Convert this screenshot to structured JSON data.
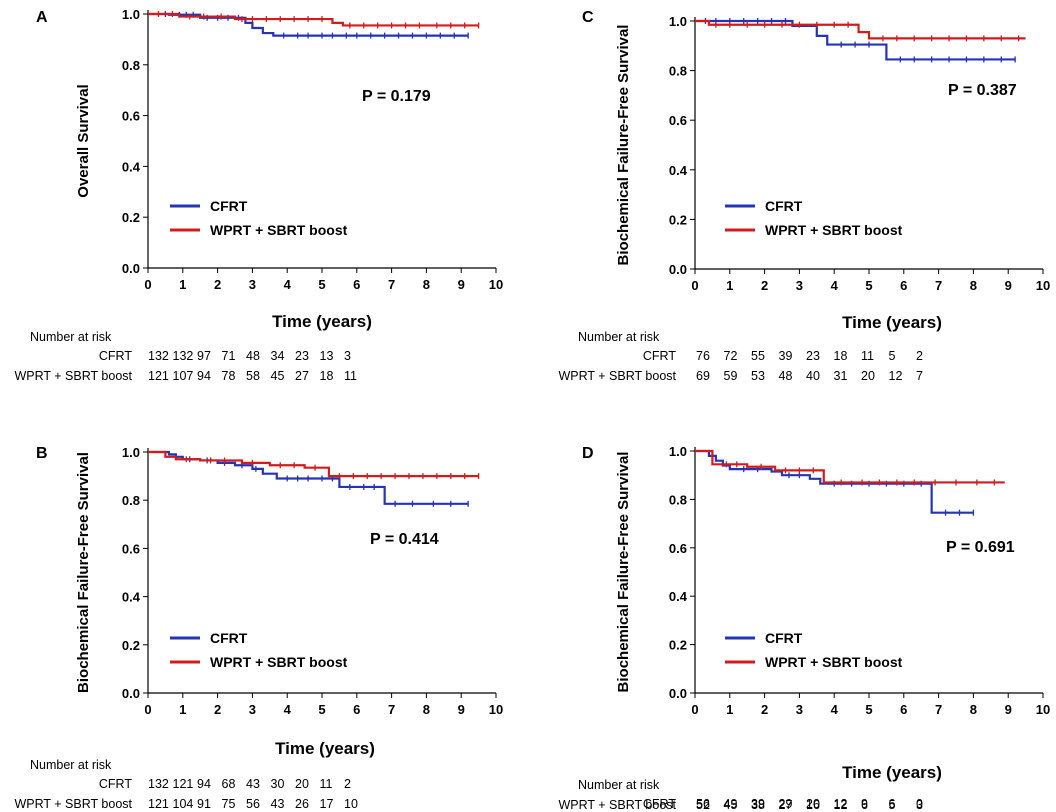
{
  "figure": {
    "number_at_risk_label": "Number at risk",
    "colors": {
      "series_1": "#2434b4",
      "series_2": "#d21c1c"
    }
  },
  "chart_data": [
    {
      "panel": "A",
      "type": "line",
      "style": "km-step",
      "xlabel": "Time (years)",
      "ylabel": "Overall Survival",
      "xlim": [
        0,
        10
      ],
      "ylim": [
        0,
        1.0
      ],
      "xticks": [
        "0",
        "1",
        "2",
        "3",
        "4",
        "5",
        "6",
        "7",
        "8",
        "9",
        "10"
      ],
      "yticks": [
        "0.0",
        "0.2",
        "0.4",
        "0.6",
        "0.8",
        "1.0"
      ],
      "p_value": "P = 0.179",
      "series": [
        {
          "name": "CFRT",
          "x": [
            0,
            0.6,
            1.5,
            2.8,
            3.0,
            3.3,
            3.6,
            9.2
          ],
          "y": [
            1.0,
            0.997,
            0.985,
            0.965,
            0.945,
            0.925,
            0.915,
            0.915
          ],
          "censor_x": [
            0.5,
            0.9,
            1.1,
            1.3,
            1.7,
            2.0,
            2.3,
            2.6,
            3.9,
            4.3,
            4.6,
            5.0,
            5.3,
            5.7,
            6.0,
            6.4,
            6.8,
            7.2,
            7.6,
            8.0,
            8.4,
            8.8,
            9.2
          ]
        },
        {
          "name": "WPRT + SBRT boost",
          "x": [
            0,
            0.9,
            2.5,
            5.3,
            5.6,
            9.5
          ],
          "y": [
            1.0,
            0.99,
            0.98,
            0.965,
            0.955,
            0.955
          ],
          "censor_x": [
            0.3,
            0.7,
            1.2,
            1.6,
            2.1,
            2.7,
            3.0,
            3.4,
            3.8,
            4.2,
            4.6,
            5.0,
            5.8,
            6.2,
            6.6,
            7.0,
            7.4,
            7.8,
            8.3,
            8.7,
            9.1,
            9.5
          ]
        }
      ],
      "risk_table": [
        {
          "name": "CFRT",
          "counts": [
            "132",
            "132",
            "97",
            "71",
            "48",
            "34",
            "23",
            "13",
            "3"
          ]
        },
        {
          "name": "WPRT + SBRT boost",
          "counts": [
            "121",
            "107",
            "94",
            "78",
            "58",
            "45",
            "27",
            "18",
            "11"
          ]
        }
      ]
    },
    {
      "panel": "C",
      "type": "line",
      "style": "km-step",
      "xlabel": "Time (years)",
      "ylabel": "Biochemical Failure-Free Survival",
      "xlim": [
        0,
        10
      ],
      "ylim": [
        0,
        1.0
      ],
      "xticks": [
        "0",
        "1",
        "2",
        "3",
        "4",
        "5",
        "6",
        "7",
        "8",
        "9",
        "10"
      ],
      "yticks": [
        "0.0",
        "0.2",
        "0.4",
        "0.6",
        "0.8",
        "1.0"
      ],
      "p_value": "P = 0.387",
      "series": [
        {
          "name": "CFRT",
          "x": [
            0,
            2.8,
            3.5,
            3.8,
            5.5,
            9.2
          ],
          "y": [
            1.0,
            0.98,
            0.94,
            0.905,
            0.845,
            0.845
          ],
          "censor_x": [
            0.3,
            0.6,
            1.0,
            1.4,
            1.8,
            2.2,
            2.6,
            4.2,
            4.6,
            5.0,
            5.9,
            6.3,
            6.8,
            7.3,
            7.8,
            8.3,
            8.8,
            9.2
          ]
        },
        {
          "name": "WPRT + SBRT boost",
          "x": [
            0,
            0.4,
            4.7,
            5.0,
            9.5
          ],
          "y": [
            1.0,
            0.985,
            0.955,
            0.93,
            0.93
          ],
          "censor_x": [
            0.6,
            1.0,
            1.5,
            2.0,
            2.5,
            3.0,
            3.5,
            4.0,
            4.4,
            5.4,
            5.8,
            6.3,
            6.8,
            7.3,
            7.8,
            8.3,
            8.8,
            9.3
          ]
        }
      ],
      "risk_table": [
        {
          "name": "CFRT",
          "counts": [
            "76",
            "72",
            "55",
            "39",
            "23",
            "18",
            "11",
            "5",
            "2"
          ]
        },
        {
          "name": "WPRT + SBRT boost",
          "counts": [
            "69",
            "59",
            "53",
            "48",
            "40",
            "31",
            "20",
            "12",
            "7"
          ]
        }
      ]
    },
    {
      "panel": "B",
      "type": "line",
      "style": "km-step",
      "xlabel": "Time (years)",
      "ylabel": "Biochemical Failure-Free Survival",
      "xlim": [
        0,
        10
      ],
      "ylim": [
        0,
        1.0
      ],
      "xticks": [
        "0",
        "1",
        "2",
        "3",
        "4",
        "5",
        "6",
        "7",
        "8",
        "9",
        "10"
      ],
      "yticks": [
        "0.0",
        "0.2",
        "0.4",
        "0.6",
        "0.8",
        "1.0"
      ],
      "p_value": "P = 0.414",
      "series": [
        {
          "name": "CFRT",
          "x": [
            0,
            0.6,
            0.8,
            1.0,
            1.5,
            2.0,
            2.5,
            3.0,
            3.3,
            3.7,
            5.5,
            6.8,
            9.2
          ],
          "y": [
            1.0,
            0.99,
            0.98,
            0.97,
            0.965,
            0.955,
            0.945,
            0.93,
            0.91,
            0.89,
            0.855,
            0.785,
            0.785
          ],
          "censor_x": [
            1.2,
            1.7,
            2.2,
            2.7,
            3.1,
            4.0,
            4.3,
            4.6,
            5.0,
            5.3,
            5.8,
            6.2,
            6.5,
            7.1,
            7.6,
            8.2,
            8.7,
            9.2
          ]
        },
        {
          "name": "WPRT + SBRT boost",
          "x": [
            0,
            0.5,
            0.8,
            1.5,
            2.7,
            3.5,
            4.5,
            5.2,
            9.5
          ],
          "y": [
            1.0,
            0.98,
            0.97,
            0.965,
            0.955,
            0.945,
            0.935,
            0.9,
            0.9
          ],
          "censor_x": [
            1.1,
            1.8,
            2.2,
            3.0,
            3.8,
            4.2,
            4.8,
            5.5,
            5.9,
            6.3,
            6.7,
            7.1,
            7.5,
            7.9,
            8.3,
            8.7,
            9.1,
            9.5
          ]
        }
      ],
      "risk_table": [
        {
          "name": "CFRT",
          "counts": [
            "132",
            "121",
            "94",
            "68",
            "43",
            "30",
            "20",
            "11",
            "2"
          ]
        },
        {
          "name": "WPRT + SBRT boost",
          "counts": [
            "121",
            "104",
            "91",
            "75",
            "56",
            "43",
            "26",
            "17",
            "10"
          ]
        }
      ]
    },
    {
      "panel": "D",
      "type": "line",
      "style": "km-step",
      "xlabel": "Time (years)",
      "ylabel": "Biochemical Failure-Free Survival",
      "xlim": [
        0,
        10
      ],
      "ylim": [
        0,
        1.0
      ],
      "xticks": [
        "0",
        "1",
        "2",
        "3",
        "4",
        "5",
        "6",
        "7",
        "8",
        "9",
        "10"
      ],
      "yticks": [
        "0.0",
        "0.2",
        "0.4",
        "0.6",
        "0.8",
        "1.0"
      ],
      "p_value": "P = 0.691",
      "series": [
        {
          "name": "CFRT",
          "x": [
            0,
            0.4,
            0.6,
            0.8,
            1.0,
            2.2,
            2.5,
            3.3,
            3.6,
            6.8,
            8.0
          ],
          "y": [
            1.0,
            0.98,
            0.96,
            0.94,
            0.925,
            0.915,
            0.9,
            0.885,
            0.865,
            0.745,
            0.745
          ],
          "censor_x": [
            1.4,
            1.8,
            2.7,
            3.0,
            4.0,
            4.5,
            5.0,
            5.5,
            6.0,
            6.5,
            7.2,
            7.6,
            8.0
          ]
        },
        {
          "name": "WPRT + SBRT boost",
          "x": [
            0,
            0.5,
            1.5,
            2.3,
            3.7,
            8.9
          ],
          "y": [
            1.0,
            0.945,
            0.935,
            0.92,
            0.87,
            0.87
          ],
          "censor_x": [
            0.9,
            1.2,
            1.9,
            2.6,
            3.0,
            3.4,
            4.2,
            4.8,
            5.3,
            5.8,
            6.3,
            6.9,
            7.5,
            8.1,
            8.6
          ]
        }
      ],
      "risk_table": [
        {
          "name": "CFRT",
          "counts": [
            "56",
            "49",
            "39",
            "29",
            "20",
            "12",
            "9",
            "6",
            "0"
          ]
        },
        {
          "name": "WPRT + SBRT boost",
          "counts": [
            "52",
            "45",
            "38",
            "27",
            "16",
            "12",
            "6",
            "5",
            "3"
          ]
        }
      ]
    }
  ]
}
